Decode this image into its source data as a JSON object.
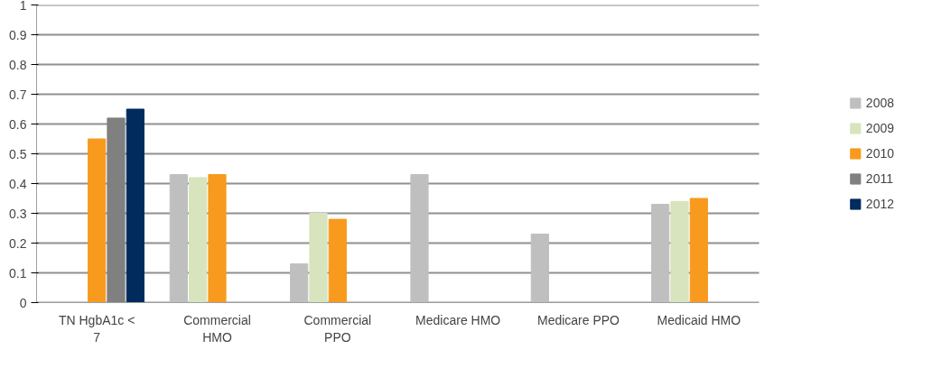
{
  "chart_data": {
    "type": "bar",
    "categories": [
      "TN HgbA1c < 7",
      "Commercial HMO",
      "Commercial PPO",
      "Medicare HMO",
      "Medicare PPO",
      "Medicaid HMO"
    ],
    "series": [
      {
        "name": "2008",
        "color": "#bfbfbf",
        "values": [
          null,
          0.43,
          0.13,
          0.43,
          0.23,
          0.33
        ]
      },
      {
        "name": "2009",
        "color": "#d7e4bd",
        "values": [
          null,
          0.42,
          0.3,
          0,
          0,
          0.34
        ]
      },
      {
        "name": "2010",
        "color": "#f79a1e",
        "values": [
          0.55,
          0.43,
          0.28,
          0,
          0,
          0.35
        ]
      },
      {
        "name": "2011",
        "color": "#808080",
        "values": [
          0.62,
          null,
          null,
          null,
          null,
          null
        ]
      },
      {
        "name": "2012",
        "color": "#002b5c",
        "values": [
          0.65,
          null,
          null,
          null,
          null,
          null
        ]
      }
    ],
    "ylim": [
      0,
      1
    ],
    "yticks": [
      0,
      0.1,
      0.2,
      0.3,
      0.4,
      0.5,
      0.6,
      0.7,
      0.8,
      0.9,
      1
    ],
    "grid": "y",
    "legend": "right"
  }
}
